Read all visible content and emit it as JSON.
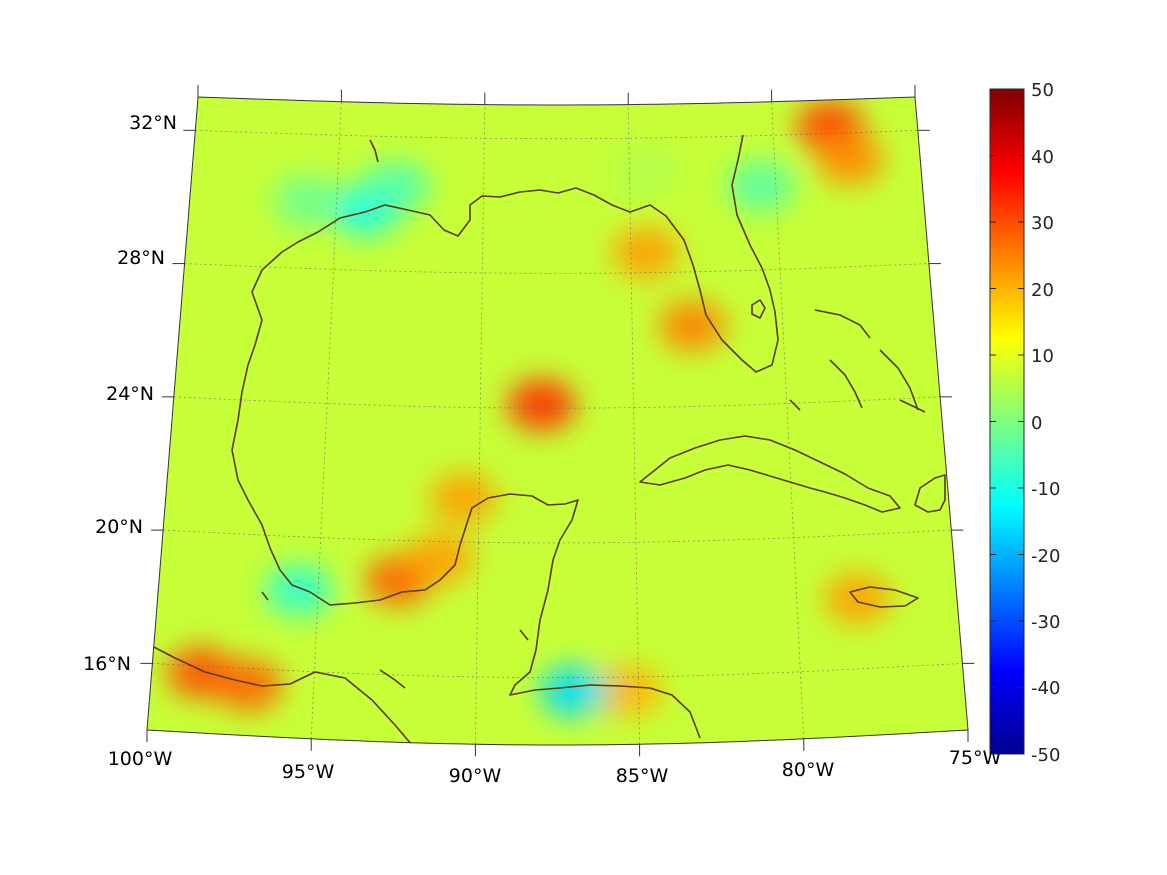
{
  "map": {
    "projection": "conic",
    "extent": {
      "lon": [
        -100,
        -75
      ],
      "lat": [
        14,
        33
      ]
    },
    "lat_ticks": [
      "32°N",
      "28°N",
      "24°N",
      "20°N",
      "16°N"
    ],
    "lon_ticks": [
      "100°W",
      "95°W",
      "90°W",
      "85°W",
      "80°W",
      "75°W"
    ],
    "grid": true,
    "coastline_color": "#5a3a12",
    "colormap": "jet"
  },
  "colorbar": {
    "ticks": [
      "50",
      "40",
      "30",
      "20",
      "10",
      "0",
      "-10",
      "-20",
      "-30",
      "-40",
      "-50"
    ],
    "range": [
      -50,
      50
    ],
    "orientation": "vertical",
    "placement": "right"
  },
  "chart_data": {
    "type": "heatmap",
    "title": "",
    "xlabel": "",
    "ylabel": "",
    "xlim": [
      -100,
      -75
    ],
    "ylim": [
      14,
      33
    ],
    "value_range": [
      -50,
      50
    ],
    "background_value": 7,
    "features": [
      {
        "lon": -98.5,
        "lat": 15.8,
        "value": 30
      },
      {
        "lon": -97,
        "lat": 15.5,
        "value": 28
      },
      {
        "lon": -92.5,
        "lat": 18.8,
        "value": 28
      },
      {
        "lon": -91.2,
        "lat": 19.5,
        "value": 22
      },
      {
        "lon": -90.5,
        "lat": 21.3,
        "value": 22
      },
      {
        "lon": -88,
        "lat": 24.1,
        "value": 33
      },
      {
        "lon": -84.5,
        "lat": 28.6,
        "value": 22
      },
      {
        "lon": -83,
        "lat": 26.4,
        "value": 25
      },
      {
        "lon": -78,
        "lat": 32.2,
        "value": 32
      },
      {
        "lon": -77.4,
        "lat": 31.2,
        "value": 24
      },
      {
        "lon": -85.3,
        "lat": 15.6,
        "value": 20
      },
      {
        "lon": -78.1,
        "lat": 18.1,
        "value": 22
      },
      {
        "lon": -94,
        "lat": 29.8,
        "value": -11
      },
      {
        "lon": -93,
        "lat": 30.5,
        "value": -5
      },
      {
        "lon": -96,
        "lat": 30,
        "value": -2
      },
      {
        "lon": -87,
        "lat": 15.6,
        "value": -16
      },
      {
        "lon": -95.6,
        "lat": 18.4,
        "value": -8
      },
      {
        "lon": -84.5,
        "lat": 31,
        "value": 5
      },
      {
        "lon": -80.5,
        "lat": 30.5,
        "value": -4
      }
    ]
  }
}
